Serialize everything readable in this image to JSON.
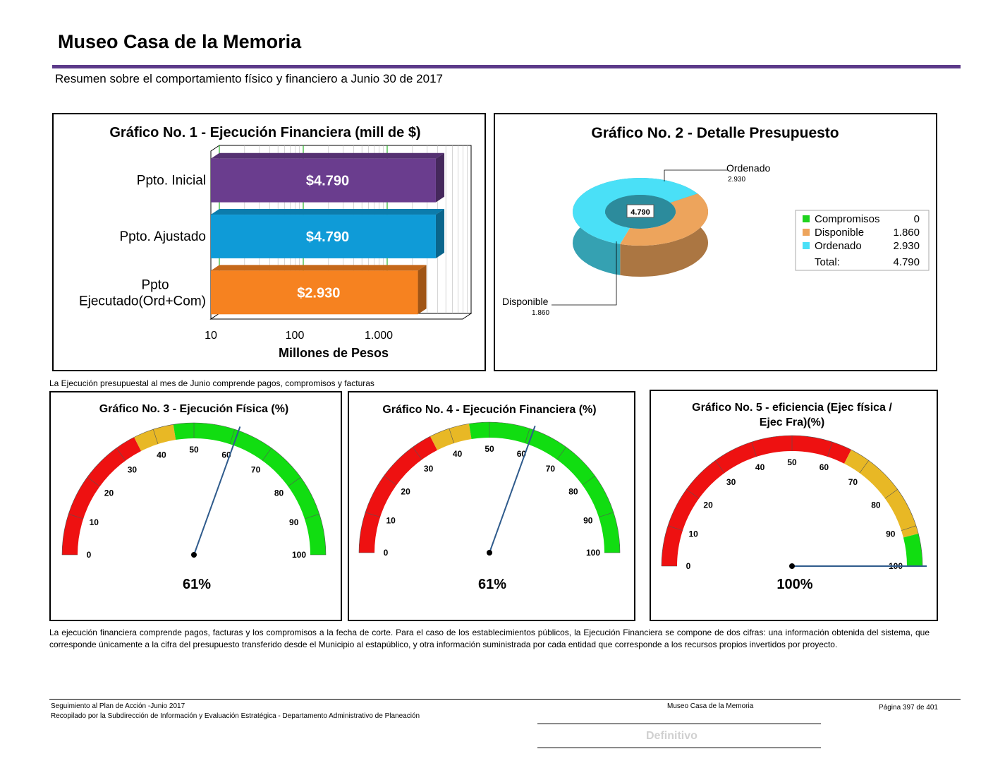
{
  "header": {
    "title": "Museo Casa de la Memoria",
    "subtitle": "Resumen sobre el comportamiento físico y financiero a Junio 30 de 2017",
    "rule_color": "#5c3a8a"
  },
  "chart_data": [
    {
      "type": "bar",
      "orientation": "horizontal",
      "title": "Gráfico No. 1 - Ejecución Financiera (mill de $)",
      "categories": [
        "Ppto. Inicial",
        "Ppto. Ajustado",
        "Ppto Ejecutado(Ord+Com)"
      ],
      "values": [
        4790,
        4790,
        2930
      ],
      "data_labels": [
        "$4.790",
        "$4.790",
        "$2.930"
      ],
      "colors": [
        "#6a3d8e",
        "#0f9bd7",
        "#f68220"
      ],
      "xlabel": "Millones de Pesos",
      "x_scale": "log",
      "xlim": [
        10,
        10000
      ],
      "x_ticks": [
        "10",
        "100",
        "1.000"
      ]
    },
    {
      "type": "pie",
      "style": "3d-donut",
      "title": "Gráfico No. 2 - Detalle Presupuesto",
      "categories": [
        "Compromisos",
        "Disponible",
        "Ordenado"
      ],
      "values": [
        0,
        1860,
        2930
      ],
      "value_labels": [
        "0",
        "1.860",
        "2.930"
      ],
      "colors": [
        "#1fd31f",
        "#eda45c",
        "#4ae0f7"
      ],
      "center_label": "4.790",
      "legend": {
        "position": "right",
        "total_label": "Total:",
        "total_value": "4.790"
      }
    },
    {
      "type": "gauge",
      "title": "Gráfico No. 3 -  Ejecución Física (%)",
      "value": 61,
      "value_label": "61%",
      "range": [
        0,
        100
      ],
      "ticks": [
        "0",
        "10",
        "20",
        "30",
        "40",
        "50",
        "60",
        "70",
        "80",
        "90",
        "100"
      ],
      "bands": [
        {
          "from": 0,
          "to": 35,
          "color": "#ee1111"
        },
        {
          "from": 35,
          "to": 45,
          "color": "#e8b825"
        },
        {
          "from": 45,
          "to": 100,
          "color": "#11dd11"
        }
      ]
    },
    {
      "type": "gauge",
      "title": "Gráfico No. 4 -  Ejecución Financiera (%)",
      "value": 61,
      "value_label": "61%",
      "range": [
        0,
        100
      ],
      "ticks": [
        "0",
        "10",
        "20",
        "30",
        "40",
        "50",
        "60",
        "70",
        "80",
        "90",
        "100"
      ],
      "bands": [
        {
          "from": 0,
          "to": 35,
          "color": "#ee1111"
        },
        {
          "from": 35,
          "to": 45,
          "color": "#e8b825"
        },
        {
          "from": 45,
          "to": 100,
          "color": "#11dd11"
        }
      ]
    },
    {
      "type": "gauge",
      "title": "Gráfico No. 5 - eficiencia (Ejec física / Ejec Fra)(%)",
      "value": 100,
      "value_label": "100%",
      "range": [
        0,
        100
      ],
      "ticks": [
        "0",
        "10",
        "20",
        "30",
        "40",
        "50",
        "60",
        "70",
        "80",
        "90",
        "100"
      ],
      "bands": [
        {
          "from": 0,
          "to": 65,
          "color": "#ee1111"
        },
        {
          "from": 65,
          "to": 92,
          "color": "#e8b825"
        },
        {
          "from": 92,
          "to": 100,
          "color": "#11dd11"
        }
      ]
    }
  ],
  "notes": {
    "note1": "La Ejecución presupuestal al mes de Junio comprende pagos, compromisos y facturas",
    "note2": "La ejecución financiera comprende pagos, facturas y los compromisos a la fecha de corte. Para el caso de los establecimientos públicos, la Ejecución Financiera se compone de dos cifras: una información obtenida del sistema, que corresponde únicamente a la cifra del presupuesto transferido desde el Municipio al estapúblico, y otra información suministrada por cada entidad que corresponde a los recursos propios invertidos por proyecto."
  },
  "footer": {
    "line1": "Seguimiento al Plan de Acción -Junio 2017",
    "line2": "Recopilado por la Subdirección de Información y Evaluación Estratégica - Departamento Administrativo de Planeación",
    "entity": "Museo Casa de la Memoria",
    "page": "Página 397 de 401",
    "status": "Definitivo"
  }
}
